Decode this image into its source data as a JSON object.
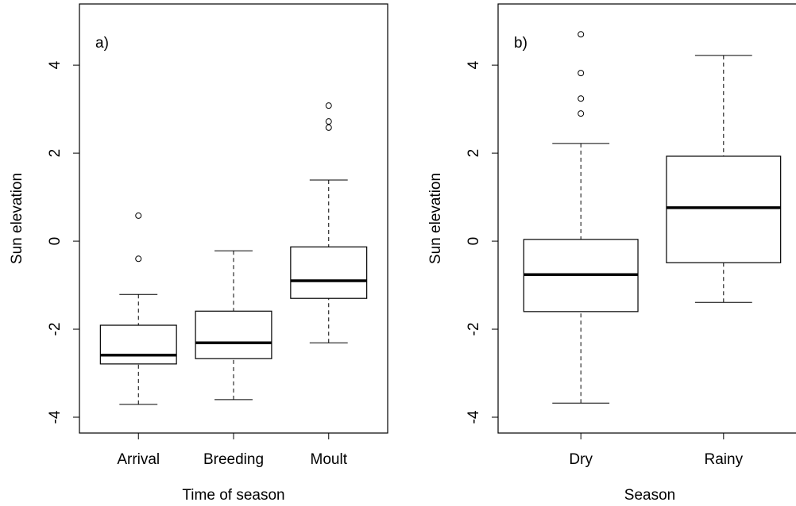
{
  "chart_data": [
    {
      "type": "box",
      "annotation": "a)",
      "xlabel": "Time of season",
      "ylabel": "Sun elevation",
      "categories": [
        "Arrival",
        "Breeding",
        "Moult"
      ],
      "boxes": [
        {
          "whisker_low": -3.71,
          "q1": -2.79,
          "median": -2.59,
          "q3": -1.91,
          "whisker_high": -1.21,
          "outliers": [
            0.58,
            -0.4
          ]
        },
        {
          "whisker_low": -3.6,
          "q1": -2.67,
          "median": -2.31,
          "q3": -1.59,
          "whisker_high": -0.22,
          "outliers": []
        },
        {
          "whisker_low": -2.31,
          "q1": -1.3,
          "median": -0.9,
          "q3": -0.13,
          "whisker_high": 1.39,
          "outliers": [
            3.08,
            2.72,
            2.58
          ]
        }
      ],
      "ylim": [
        -4.36,
        5.39
      ],
      "yticks": [
        -4,
        -2,
        0,
        2,
        4
      ]
    },
    {
      "type": "box",
      "annotation": "b)",
      "xlabel": "Season",
      "ylabel": "Sun elevation",
      "categories": [
        "Dry",
        "Rainy"
      ],
      "boxes": [
        {
          "whisker_low": -3.68,
          "q1": -1.6,
          "median": -0.76,
          "q3": 0.04,
          "whisker_high": 2.22,
          "outliers": [
            4.7,
            3.82,
            3.24,
            2.9
          ]
        },
        {
          "whisker_low": -1.39,
          "q1": -0.49,
          "median": 0.76,
          "q3": 1.93,
          "whisker_high": 4.22,
          "outliers": []
        }
      ],
      "ylim": [
        -4.36,
        5.39
      ],
      "yticks": [
        -4,
        -2,
        0,
        2,
        4
      ]
    }
  ]
}
